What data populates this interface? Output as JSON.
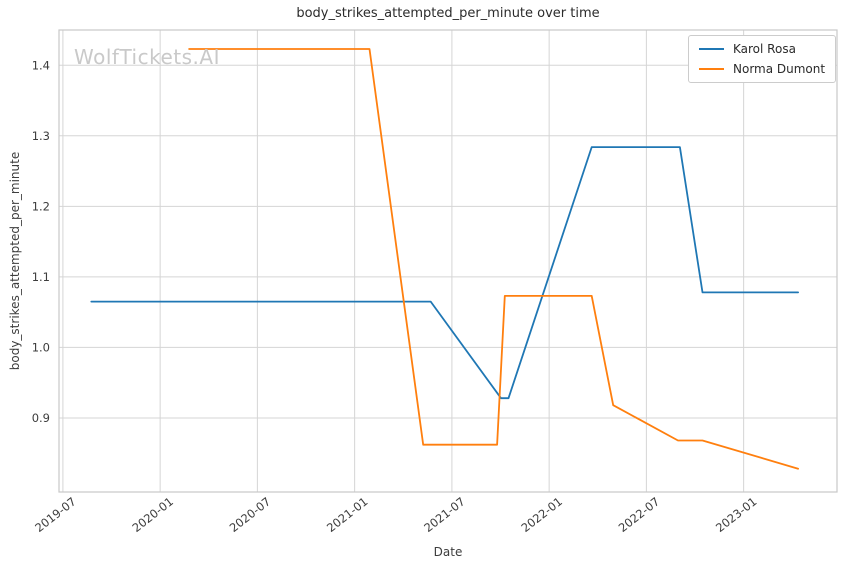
{
  "watermark": "WolfTickets.AI",
  "chart_data": {
    "type": "line",
    "title": "body_strikes_attempted_per_minute over time",
    "xlabel": "Date",
    "ylabel": "body_strikes_attempted_per_minute",
    "legend_position": "upper right",
    "grid": true,
    "background_color": "#ffffff",
    "grid_color": "#d5d5d5",
    "spine_color": "#c8c8c8",
    "text_color": "#3d3d3d",
    "x_ticks": [
      "2019-07",
      "2020-01",
      "2020-07",
      "2021-01",
      "2021-07",
      "2022-01",
      "2022-07",
      "2023-01"
    ],
    "y_ticks": [
      "0.9",
      "1.0",
      "1.1",
      "1.2",
      "1.3",
      "1.4"
    ],
    "xlim_years": [
      2019.48,
      2023.48
    ],
    "ylim": [
      0.795,
      1.45
    ],
    "series": [
      {
        "name": "Karol Rosa",
        "color": "#1f77b4",
        "points": [
          {
            "date": "2019-08-24",
            "value": 1.065
          },
          {
            "date": "2021-05-22",
            "value": 1.065
          },
          {
            "date": "2021-10-02",
            "value": 0.928
          },
          {
            "date": "2021-10-16",
            "value": 0.928
          },
          {
            "date": "2022-03-20",
            "value": 1.284
          },
          {
            "date": "2022-09-03",
            "value": 1.284
          },
          {
            "date": "2022-10-15",
            "value": 1.078
          },
          {
            "date": "2023-04-12",
            "value": 1.078
          }
        ]
      },
      {
        "name": "Norma Dumont",
        "color": "#ff7f0e",
        "points": [
          {
            "date": "2020-02-25",
            "value": 1.423
          },
          {
            "date": "2021-01-29",
            "value": 1.423
          },
          {
            "date": "2021-05-08",
            "value": 0.862
          },
          {
            "date": "2021-09-25",
            "value": 0.862
          },
          {
            "date": "2021-10-09",
            "value": 1.073
          },
          {
            "date": "2022-03-20",
            "value": 1.073
          },
          {
            "date": "2022-04-30",
            "value": 0.918
          },
          {
            "date": "2022-08-30",
            "value": 0.868
          },
          {
            "date": "2022-10-15",
            "value": 0.868
          },
          {
            "date": "2023-04-12",
            "value": 0.828
          }
        ]
      }
    ]
  }
}
